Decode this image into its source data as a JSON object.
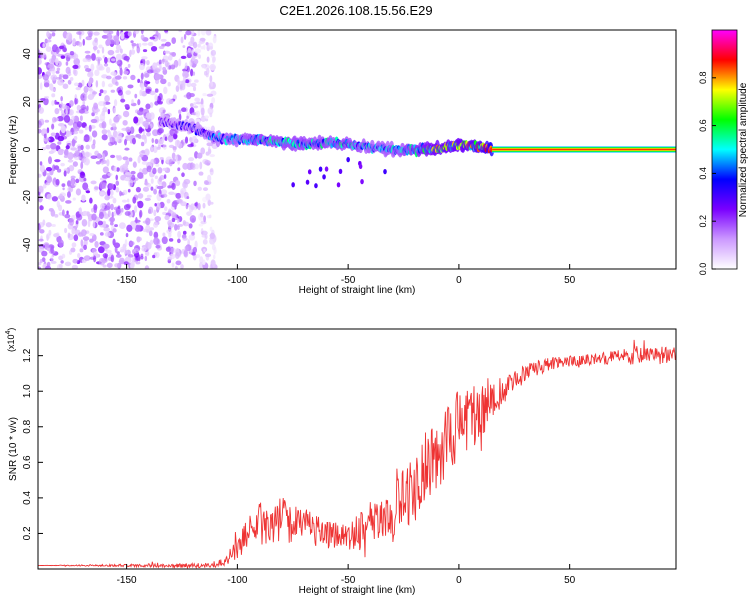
{
  "title": "C2E1.2026.108.15.56.E29",
  "chart_data": [
    {
      "type": "heatmap",
      "title": "C2E1.2026.108.15.56.E29",
      "xlabel": "Height of straight line (km)",
      "ylabel": "Frequency (Hz)",
      "xlim": [
        -190,
        98
      ],
      "ylim": [
        -50,
        50
      ],
      "x_ticks": [
        -150,
        -100,
        -50,
        0,
        50
      ],
      "y_ticks": [
        -40,
        -20,
        0,
        20,
        40
      ],
      "colorbar": {
        "label": "Normalized spectral amplitude",
        "range": [
          0,
          1
        ],
        "ticks": [
          0.0,
          0.2,
          0.4,
          0.6,
          0.8
        ],
        "tick_labels": [
          "0.0",
          "0.2",
          "0.4",
          "0.6",
          "0.8"
        ],
        "colormap": [
          "#ffffff",
          "#cc99ff",
          "#7a00ff",
          "#0000ff",
          "#00ffff",
          "#00ff00",
          "#ffff00",
          "#ff0000",
          "#ff00ff"
        ]
      },
      "noise_region": {
        "x_range": [
          -190,
          -110
        ],
        "freq_range": [
          -50,
          50
        ],
        "amplitude_range": [
          0.05,
          0.25
        ]
      },
      "ridge": [
        {
          "x": -135,
          "freq": 12,
          "amplitude": 0.3
        },
        {
          "x": -120,
          "freq": 9,
          "amplitude": 0.35
        },
        {
          "x": -110,
          "freq": 5,
          "amplitude": 0.45
        },
        {
          "x": -100,
          "freq": 4,
          "amplitude": 0.5
        },
        {
          "x": -90,
          "freq": 4,
          "amplitude": 0.55
        },
        {
          "x": -80,
          "freq": 3,
          "amplitude": 0.55
        },
        {
          "x": -70,
          "freq": 2,
          "amplitude": 0.55
        },
        {
          "x": -60,
          "freq": 3,
          "amplitude": 0.55
        },
        {
          "x": -50,
          "freq": 2,
          "amplitude": 0.55
        },
        {
          "x": -40,
          "freq": 1,
          "amplitude": 0.5
        },
        {
          "x": -30,
          "freq": 0,
          "amplitude": 0.5
        },
        {
          "x": -20,
          "freq": 0,
          "amplitude": 0.6
        },
        {
          "x": -10,
          "freq": 0,
          "amplitude": 0.75
        },
        {
          "x": 0,
          "freq": 2,
          "amplitude": 0.75
        },
        {
          "x": 10,
          "freq": 1,
          "amplitude": 0.8
        },
        {
          "x": 15,
          "freq": 0,
          "amplitude": 1.0
        },
        {
          "x": 98,
          "freq": 0,
          "amplitude": 1.0
        }
      ]
    },
    {
      "type": "line",
      "xlabel": "Height of straight line (km)",
      "ylabel": "SNR (10 * v/v)",
      "y_multiplier": "(x10",
      "y_multiplier_exp": "4",
      "y_multiplier_close": ")",
      "xlim": [
        -190,
        98
      ],
      "ylim": [
        0,
        1.35
      ],
      "x_ticks": [
        -150,
        -100,
        -50,
        0,
        50
      ],
      "y_ticks": [
        0.2,
        0.4,
        0.6,
        0.8,
        1.0,
        1.2
      ],
      "series": [
        {
          "name": "SNR",
          "color": "#ee3333",
          "x": [
            -190,
            -110,
            -105,
            -100,
            -95,
            -90,
            -85,
            -80,
            -75,
            -70,
            -65,
            -60,
            -55,
            -50,
            -45,
            -40,
            -35,
            -30,
            -28,
            -25,
            -20,
            -15,
            -10,
            -5,
            0,
            5,
            10,
            13,
            15,
            20,
            25,
            30,
            40,
            50,
            60,
            70,
            80,
            90,
            98
          ],
          "y": [
            0.02,
            0.02,
            0.05,
            0.12,
            0.2,
            0.25,
            0.27,
            0.28,
            0.27,
            0.25,
            0.22,
            0.2,
            0.18,
            0.18,
            0.22,
            0.27,
            0.3,
            0.25,
            0.4,
            0.4,
            0.45,
            0.55,
            0.65,
            0.75,
            0.8,
            0.85,
            0.9,
            0.95,
            0.95,
            1.0,
            1.05,
            1.1,
            1.15,
            1.17,
            1.18,
            1.19,
            1.2,
            1.2,
            1.2
          ],
          "noise": [
            0.0,
            0.015,
            0.03,
            0.06,
            0.09,
            0.12,
            0.14,
            0.13,
            0.12,
            0.1,
            0.09,
            0.08,
            0.08,
            0.08,
            0.1,
            0.12,
            0.13,
            0.14,
            0.18,
            0.18,
            0.2,
            0.22,
            0.22,
            0.22,
            0.2,
            0.18,
            0.17,
            0.15,
            0.12,
            0.08,
            0.06,
            0.05,
            0.04,
            0.03,
            0.03,
            0.04,
            0.05,
            0.05,
            0.05
          ]
        }
      ]
    }
  ]
}
